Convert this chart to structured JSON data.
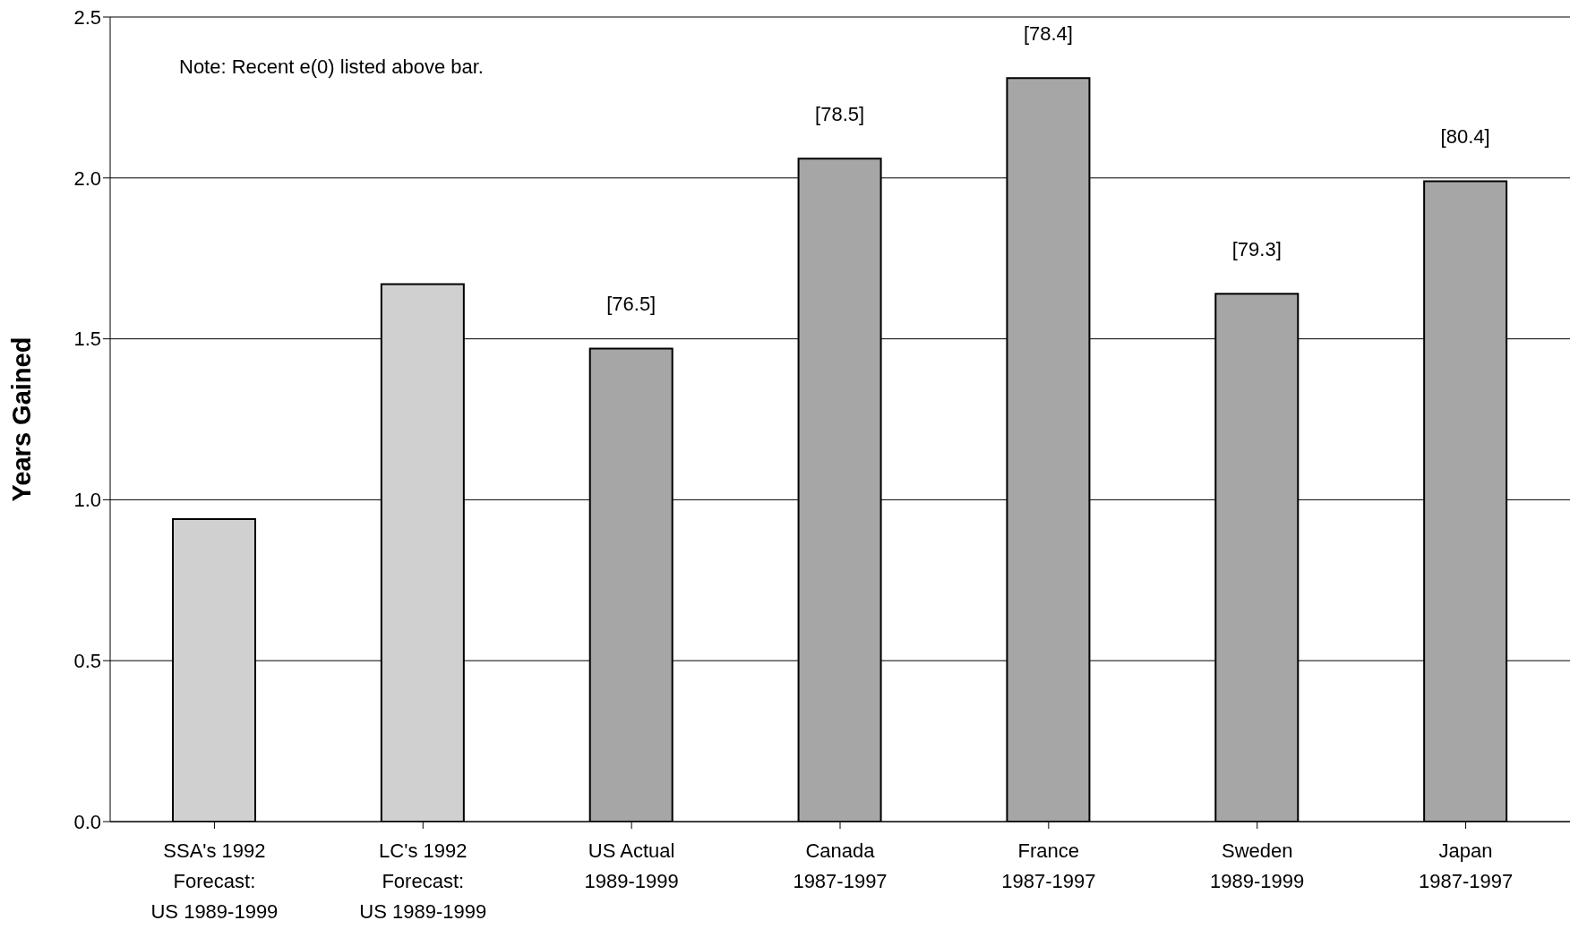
{
  "chart_data": {
    "type": "bar",
    "ylabel": "Years Gained",
    "categories": [
      "SSA's 1992\nForecast:\nUS 1989-1999",
      "LC's 1992\nForecast:\nUS 1989-1999",
      "US Actual\n1989-1999",
      "Canada\n1987-1997",
      "France\n1987-1997",
      "Sweden\n1989-1999",
      "Japan\n1987-1997"
    ],
    "values": [
      0.94,
      1.67,
      1.47,
      2.06,
      2.31,
      1.64,
      1.99
    ],
    "colors": [
      "#d0d0d0",
      "#d0d0d0",
      "#a6a6a6",
      "#a6a6a6",
      "#a6a6a6",
      "#a6a6a6",
      "#a6a6a6"
    ],
    "ylim": [
      0,
      2.5
    ],
    "yticks": [
      {
        "value": 0,
        "label": "0.0"
      },
      {
        "value": 0.5,
        "label": "0.5"
      },
      {
        "value": 1,
        "label": "1.0"
      },
      {
        "value": 1.5,
        "label": "1.5"
      },
      {
        "value": 2,
        "label": "2.0"
      },
      {
        "value": 2.5,
        "label": "2.5"
      }
    ],
    "grid": "y",
    "annotations": [
      "Note: Recent e(0) listed above bar.",
      "[76.5]",
      "[78.5]",
      "[78.4]",
      "[79.3]",
      "[80.4]"
    ]
  }
}
